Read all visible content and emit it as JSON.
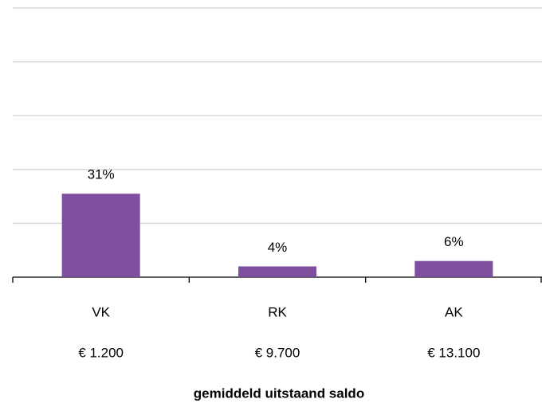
{
  "chart_data": {
    "type": "bar",
    "categories": [
      "VK",
      "RK",
      "AK"
    ],
    "category_notes": [
      "€ 1.200",
      "€ 9.700",
      "€ 13.100"
    ],
    "values": [
      31,
      4,
      6
    ],
    "value_labels": [
      "31%",
      "4%",
      "6%"
    ],
    "color": "#7f4f9f",
    "x_label": "gemiddeld uitstaand saldo",
    "ylim": [
      0,
      100
    ],
    "yticks": [
      0,
      20,
      40,
      60,
      80,
      100
    ],
    "grid": true
  }
}
